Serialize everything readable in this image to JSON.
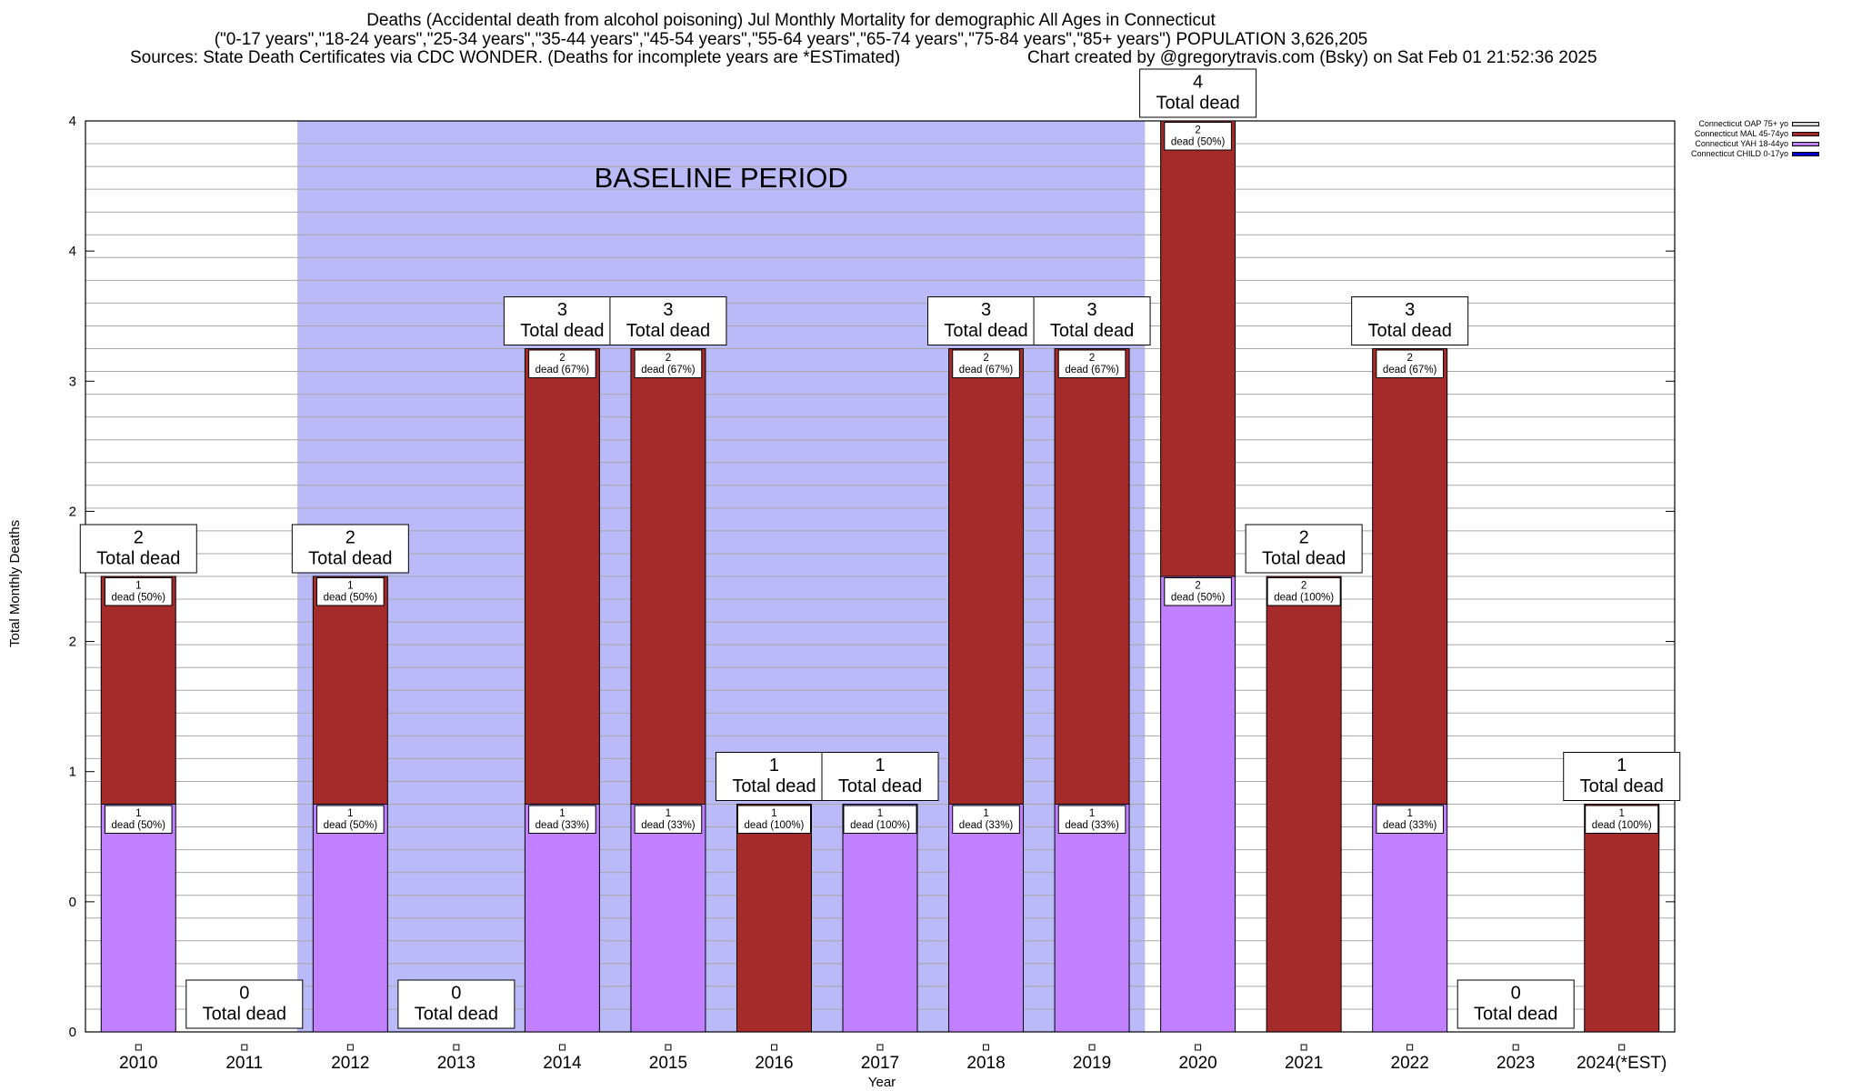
{
  "chart_data": {
    "type": "bar",
    "stacked": true,
    "title": "Deaths (Accidental death from alcohol poisoning) Jul Monthly Mortality for demographic All Ages in Connecticut",
    "subtitle": "(\"0-17 years\",\"18-24 years\",\"25-34 years\",\"35-44 years\",\"45-54 years\",\"55-64 years\",\"65-74 years\",\"75-84 years\",\"85+ years\") POPULATION 3,626,205",
    "source_left": "Sources: State Death Certificates via CDC WONDER. (Deaths for incomplete years are *ESTimated)",
    "source_right": "Chart created by @gregorytravis.com (Bsky) on Sat Feb 01 21:52:36 2025",
    "xlabel": "Year",
    "ylabel": "Total Monthly Deaths",
    "ylim": [
      0,
      4
    ],
    "y_tick_labels": [
      "0",
      "0",
      "1",
      "2",
      "2",
      "3",
      "4",
      "4"
    ],
    "baseline_label": "BASELINE PERIOD",
    "baseline_range": [
      "2012",
      "2019"
    ],
    "categories": [
      "2010",
      "2011",
      "2012",
      "2013",
      "2014",
      "2015",
      "2016",
      "2017",
      "2018",
      "2019",
      "2020",
      "2021",
      "2022",
      "2023",
      "2024(*EST)"
    ],
    "totals": [
      2,
      0,
      2,
      0,
      3,
      3,
      1,
      1,
      3,
      3,
      4,
      2,
      3,
      0,
      1
    ],
    "total_suffix": "Total dead",
    "series": [
      {
        "name": "Connecticut CHILD 0-17yo",
        "color": "#0000cc",
        "values": [
          0,
          0,
          0,
          0,
          0,
          0,
          0,
          0,
          0,
          0,
          0,
          0,
          0,
          0,
          0
        ],
        "labels": [
          "",
          "",
          "",
          "",
          "",
          "",
          "",
          "",
          "",
          "",
          "",
          "",
          "",
          "",
          ""
        ]
      },
      {
        "name": "Connecticut YAH 18-44yo",
        "color": "#c080ff",
        "values": [
          1,
          0,
          1,
          0,
          1,
          1,
          0,
          1,
          1,
          1,
          2,
          0,
          1,
          0,
          0
        ],
        "labels": [
          "dead (50%)",
          "",
          "dead (50%)",
          "",
          "dead (33%)",
          "dead (33%)",
          "",
          "dead (100%)",
          "dead (33%)",
          "dead (33%)",
          "dead (50%)",
          "",
          "dead (33%)",
          "",
          ""
        ]
      },
      {
        "name": "Connecticut MAL 45-74yo",
        "color": "#a52a2a",
        "values": [
          1,
          0,
          1,
          0,
          2,
          2,
          1,
          0,
          2,
          2,
          2,
          2,
          2,
          0,
          1
        ],
        "labels": [
          "dead (50%)",
          "",
          "dead (50%)",
          "",
          "dead (67%)",
          "dead (67%)",
          "dead (100%)",
          "",
          "dead (67%)",
          "dead (67%)",
          "dead (50%)",
          "dead (100%)",
          "dead (67%)",
          "",
          "dead (100%)"
        ]
      },
      {
        "name": "Connecticut OAP 75+ yo",
        "color": "#d3d3d3",
        "values": [
          0,
          0,
          0,
          0,
          0,
          0,
          0,
          0,
          0,
          0,
          0,
          0,
          0,
          0,
          0
        ],
        "labels": [
          "",
          "",
          "",
          "",
          "",
          "",
          "",
          "",
          "",
          "",
          "",
          "",
          "",
          "",
          ""
        ]
      }
    ],
    "legend_position": "outside top-right",
    "grid": true
  }
}
